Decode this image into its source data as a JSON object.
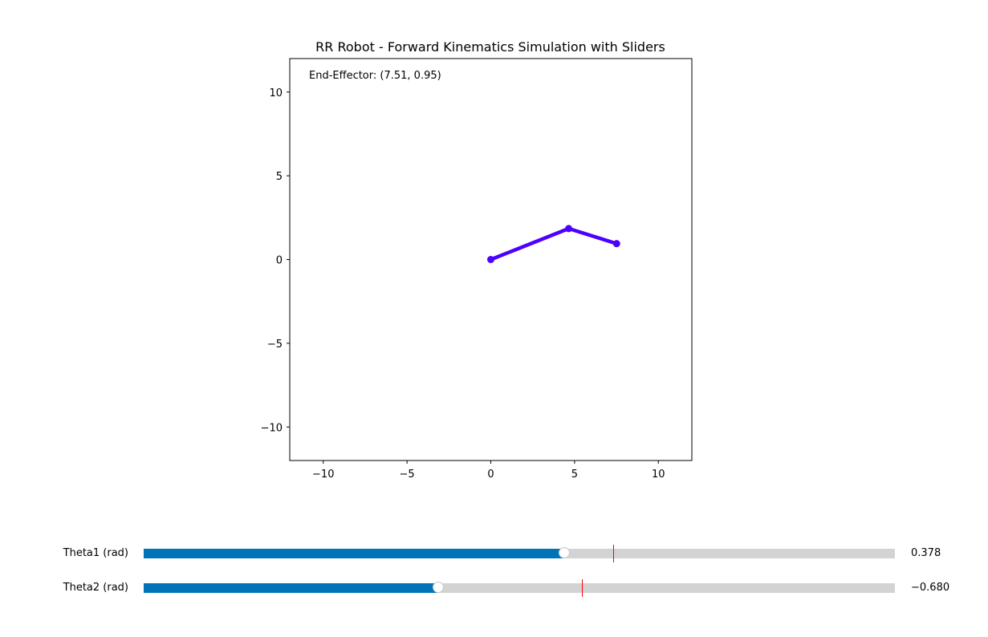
{
  "colors": {
    "arm": "#4c00ff",
    "slider_fill": "#0173b7",
    "slider_track": "#d3d3d3",
    "slider_init_marker": "#ff0000"
  },
  "chart_data": {
    "type": "line",
    "title": "RR Robot - Forward Kinematics Simulation with Sliders",
    "annotation": "End-Effector: (7.51, 0.95)",
    "xlabel": "",
    "ylabel": "",
    "xlim": [
      -12,
      12
    ],
    "ylim": [
      -12,
      12
    ],
    "xticks": [
      -10,
      -5,
      0,
      5,
      10
    ],
    "yticks": [
      -10,
      -5,
      0,
      5,
      10
    ],
    "xtick_labels": [
      "−10",
      "−5",
      "0",
      "5",
      "10"
    ],
    "ytick_labels": [
      "−10",
      "−5",
      "0",
      "5",
      "10"
    ],
    "grid": false,
    "series": [
      {
        "name": "arm",
        "x": [
          0,
          4.65,
          7.51
        ],
        "y": [
          0,
          1.85,
          0.95
        ]
      }
    ]
  },
  "sliders": [
    {
      "label": "Theta1 (rad)",
      "min": -3.14159,
      "max": 3.14159,
      "value": 0.378,
      "init": 0.785,
      "value_text": "0.378"
    },
    {
      "label": "Theta2 (rad)",
      "min": -3.14159,
      "max": 3.14159,
      "value": -0.68,
      "init": 0.524,
      "value_text": "−0.680"
    }
  ]
}
